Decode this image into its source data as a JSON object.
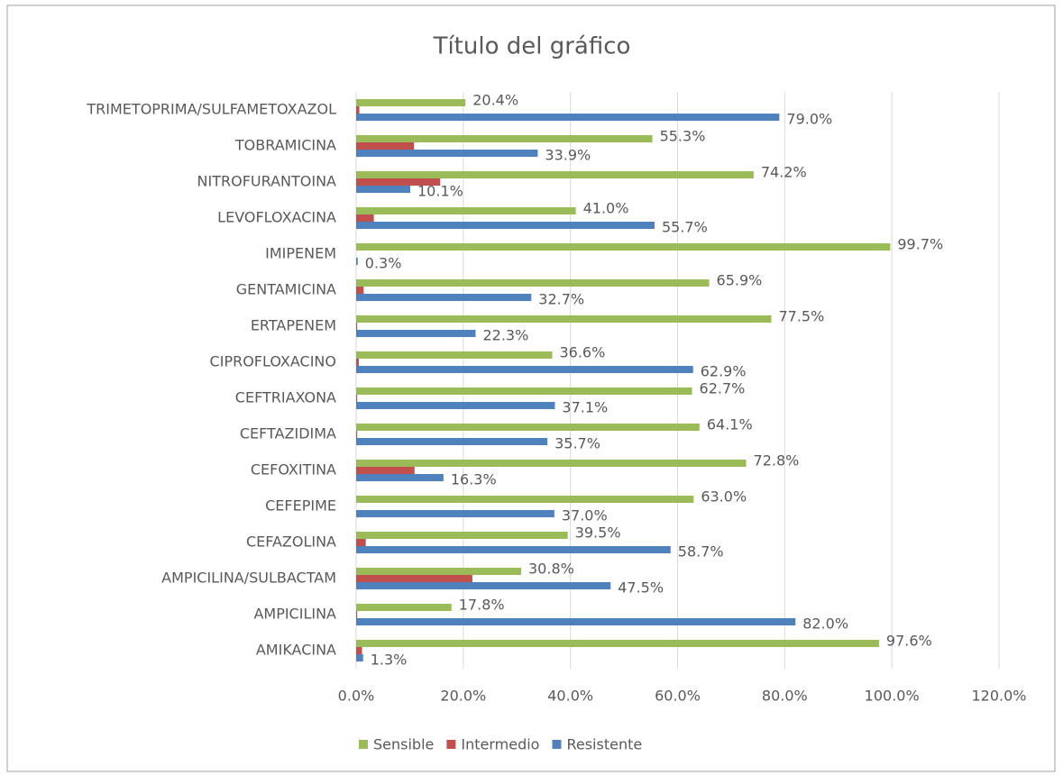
{
  "chart_data": {
    "type": "bar",
    "orientation": "horizontal",
    "title": "Título del gráfico",
    "categories": [
      "AMIKACINA",
      "AMPICILINA",
      "AMPICILINA/SULBACTAM",
      "CEFAZOLINA",
      "CEFEPIME",
      "CEFOXITINA",
      "CEFTAZIDIMA",
      "CEFTRIAXONA",
      "CIPROFLOXACINO",
      "ERTAPENEM",
      "GENTAMICINA",
      "IMIPENEM",
      "LEVOFLOXACINA",
      "NITROFURANTOINA",
      "TOBRAMICINA",
      "TRIMETOPRIMA/SULFAMETOXAZOL"
    ],
    "series": [
      {
        "name": "Sensible",
        "color": "#9bbb59",
        "values": [
          97.6,
          17.8,
          30.8,
          39.5,
          63.0,
          72.8,
          64.1,
          62.7,
          36.6,
          77.5,
          65.9,
          99.7,
          41.0,
          74.2,
          55.3,
          20.4
        ],
        "value_labels": [
          "97.6%",
          "17.8%",
          "30.8%",
          "39.5%",
          "63.0%",
          "72.8%",
          "64.1%",
          "62.7%",
          "36.6%",
          "77.5%",
          "65.9%",
          "99.7%",
          "41.0%",
          "74.2%",
          "55.3%",
          "20.4%"
        ]
      },
      {
        "name": "Intermedio",
        "color": "#c0504d",
        "values": [
          1.1,
          0.2,
          21.7,
          1.8,
          0,
          10.9,
          0.2,
          0.2,
          0.5,
          0.2,
          1.4,
          0,
          3.3,
          15.7,
          10.8,
          0.6
        ]
      },
      {
        "name": "Resistente",
        "color": "#4f81bd",
        "values": [
          1.3,
          82.0,
          47.5,
          58.7,
          37.0,
          16.3,
          35.7,
          37.1,
          62.9,
          22.3,
          32.7,
          0.3,
          55.7,
          10.1,
          33.9,
          79.0
        ],
        "value_labels": [
          "1.3%",
          "82.0%",
          "47.5%",
          "58.7%",
          "37.0%",
          "16.3%",
          "35.7%",
          "37.1%",
          "62.9%",
          "22.3%",
          "32.7%",
          "0.3%",
          "55.7%",
          "10.1%",
          "33.9%",
          "79.0%"
        ]
      }
    ],
    "xlim": [
      0,
      120
    ],
    "xticks": [
      {
        "value": 0,
        "label": "0.0%"
      },
      {
        "value": 20,
        "label": "20.0%"
      },
      {
        "value": 40,
        "label": "40.0%"
      },
      {
        "value": 60,
        "label": "60.0%"
      },
      {
        "value": 80,
        "label": "80.0%"
      },
      {
        "value": 100,
        "label": "100.0%"
      },
      {
        "value": 120,
        "label": "120.0%"
      }
    ],
    "grid": true,
    "legend": "bottom"
  }
}
